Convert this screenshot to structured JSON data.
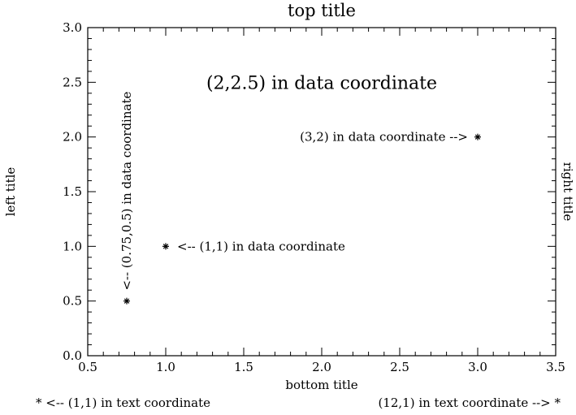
{
  "chart_data": {
    "type": "scatter",
    "title": "top title",
    "xlabel": "bottom title",
    "ylabel": "left title",
    "right_label": "right title",
    "xlim": [
      0.5,
      3.5
    ],
    "ylim": [
      0.0,
      3.0
    ],
    "x_ticks": [
      "0.5",
      "1.0",
      "1.5",
      "2.0",
      "2.5",
      "3.0",
      "3.5"
    ],
    "y_ticks": [
      "0.0",
      "0.5",
      "1.0",
      "1.5",
      "2.0",
      "2.5",
      "3.0"
    ],
    "grid": false,
    "points": [
      {
        "x": 1.0,
        "y": 1.0,
        "marker": "*"
      },
      {
        "x": 3.0,
        "y": 2.0,
        "marker": "*"
      },
      {
        "x": 0.75,
        "y": 0.5,
        "marker": "*"
      }
    ],
    "annotations": [
      {
        "text": "(2,2.5) in data coordinate",
        "x": 2.0,
        "y": 2.5,
        "anchor": "middle",
        "size": "large",
        "rotation": 0
      },
      {
        "text": "(3,2) in data coordinate -->",
        "x": 3.0,
        "y": 2.0,
        "anchor": "end",
        "size": "normal",
        "rotation": 0
      },
      {
        "text": "<-- (1,1) in data coordinate",
        "x": 1.0,
        "y": 1.0,
        "anchor": "start",
        "size": "normal",
        "rotation": 0
      },
      {
        "text": "<-- (0.75,0.5) in data coordinate",
        "x": 0.75,
        "y": 0.5,
        "anchor": "start",
        "size": "normal",
        "rotation": -90
      }
    ],
    "text_coordinate_labels": [
      {
        "text": "* <-- (1,1) in text coordinate",
        "anchor": "start"
      },
      {
        "text": "(12,1) in text coordinate --> *",
        "anchor": "end"
      }
    ]
  }
}
